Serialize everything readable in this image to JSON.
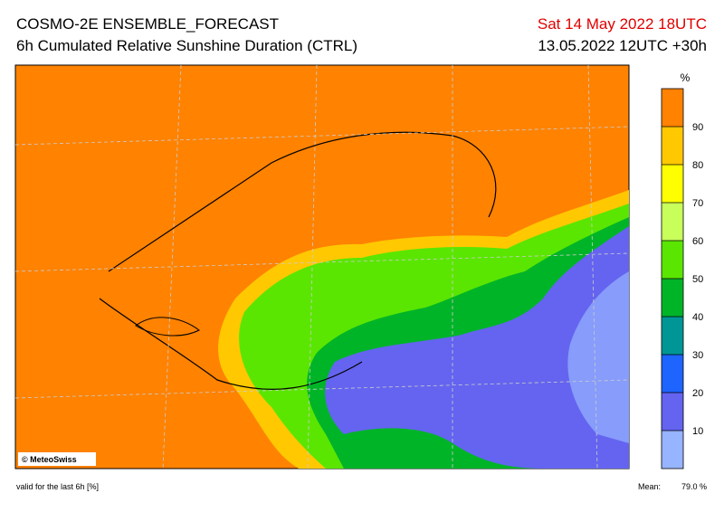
{
  "header": {
    "title": "COSMO-2E ENSEMBLE_FORECAST",
    "subtitle": "6h Cumulated Relative Sunshine Duration (CTRL)",
    "valid_time": "Sat 14 May 2022 18UTC",
    "run": "13.05.2022 12UTC +30h"
  },
  "map": {
    "copyright": "© MeteoSwiss"
  },
  "legend": {
    "unit": "%",
    "ticks": [
      10,
      20,
      30,
      40,
      50,
      60,
      70,
      80,
      90
    ],
    "colors": [
      "#96b4ff",
      "#6464f0",
      "#1e64ff",
      "#009696",
      "#00b428",
      "#5ae600",
      "#c8ff5a",
      "#ffff00",
      "#ffc800",
      "#ff8200"
    ]
  },
  "footer": {
    "note": "valid for the last 6h [%]",
    "mean_label": "Mean:",
    "mean_value": "79.0 %"
  }
}
